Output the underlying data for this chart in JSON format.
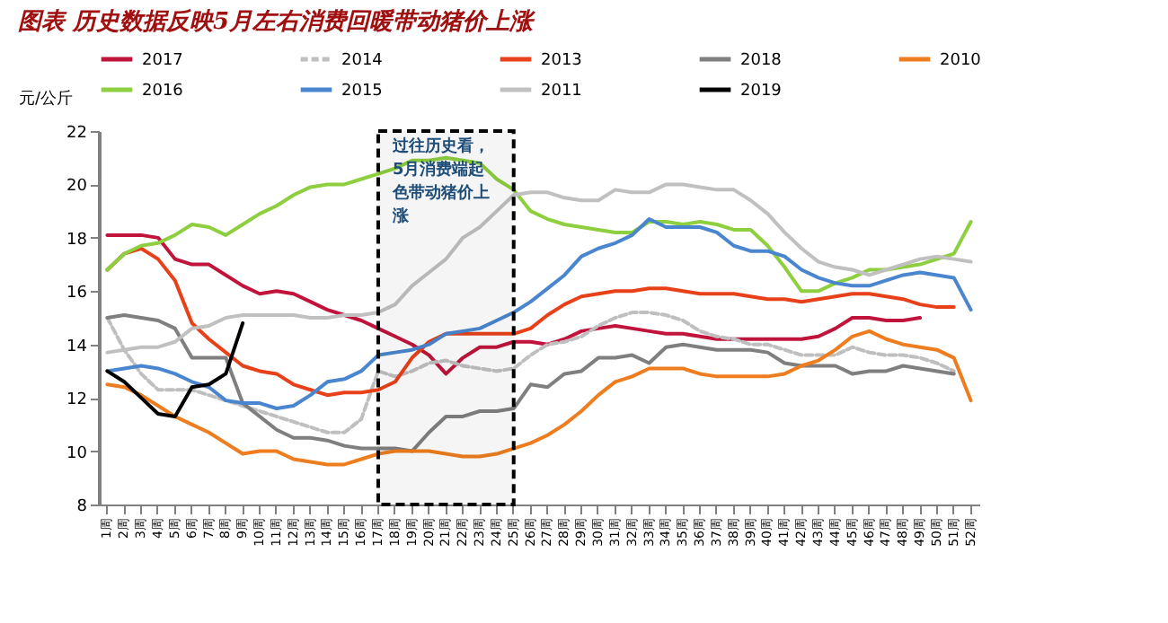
{
  "chart_data": {
    "type": "line",
    "title": "图表    历史数据反映5月左右消费回暖带动猪价上涨",
    "ylabel": "元/公斤",
    "categories": [
      "1周",
      "2周",
      "3周",
      "4周",
      "5周",
      "6周",
      "7周",
      "8周",
      "9周",
      "10周",
      "11周",
      "12周",
      "13周",
      "14周",
      "15周",
      "16周",
      "17周",
      "18周",
      "19周",
      "20周",
      "21周",
      "22周",
      "23周",
      "24周",
      "25周",
      "26周",
      "27周",
      "28周",
      "29周",
      "30周",
      "31周",
      "32周",
      "33周",
      "34周",
      "35周",
      "36周",
      "37周",
      "38周",
      "39周",
      "40周",
      "41周",
      "42周",
      "43周",
      "44周",
      "45周",
      "46周",
      "47周",
      "48周",
      "49周",
      "50周",
      "51周",
      "52周"
    ],
    "ylim": [
      8,
      22
    ],
    "yticks": [
      8,
      10,
      12,
      14,
      16,
      18,
      20,
      22
    ],
    "grid": false,
    "legend": "top",
    "marker": "none",
    "series": [
      {
        "name": "2017",
        "color": "#c0143c",
        "line_style": "solid",
        "values": [
          18.1,
          18.1,
          18.1,
          18.0,
          17.2,
          17.0,
          17.0,
          16.6,
          16.2,
          15.9,
          16.0,
          15.9,
          15.6,
          15.3,
          15.1,
          14.9,
          14.6,
          14.3,
          14.0,
          13.6,
          12.9,
          13.5,
          13.9,
          13.9,
          14.1,
          14.1,
          14.0,
          14.2,
          14.5,
          14.6,
          14.7,
          14.6,
          14.5,
          14.4,
          14.4,
          14.3,
          14.2,
          14.2,
          14.2,
          14.2,
          14.2,
          14.2,
          14.3,
          14.6,
          15.0,
          15.0,
          14.9,
          14.9,
          15.0,
          null,
          null,
          null
        ]
      },
      {
        "name": "2014",
        "color": "#bfbfbf",
        "line_style": "dashed",
        "values": [
          15.0,
          13.8,
          12.9,
          12.3,
          12.3,
          12.3,
          12.1,
          11.9,
          11.7,
          11.5,
          11.3,
          11.1,
          10.9,
          10.7,
          10.7,
          11.2,
          13.0,
          12.8,
          13.0,
          13.3,
          13.4,
          13.2,
          13.1,
          13.0,
          13.1,
          13.6,
          14.0,
          14.1,
          14.3,
          14.7,
          15.0,
          15.2,
          15.2,
          15.1,
          14.9,
          14.5,
          14.3,
          14.2,
          14.0,
          14.0,
          13.8,
          13.6,
          13.6,
          13.6,
          13.9,
          13.7,
          13.6,
          13.6,
          13.5,
          13.3,
          13.0,
          null
        ]
      },
      {
        "name": "2013",
        "color": "#e8411a",
        "line_style": "solid",
        "values": [
          16.8,
          17.4,
          17.6,
          17.2,
          16.4,
          14.8,
          14.2,
          13.7,
          13.2,
          13.0,
          12.9,
          12.5,
          12.3,
          12.1,
          12.2,
          12.2,
          12.3,
          12.6,
          13.5,
          14.1,
          14.4,
          14.4,
          14.4,
          14.4,
          14.4,
          14.6,
          15.1,
          15.5,
          15.8,
          15.9,
          16.0,
          16.0,
          16.1,
          16.1,
          16.0,
          15.9,
          15.9,
          15.9,
          15.8,
          15.7,
          15.7,
          15.6,
          15.7,
          15.8,
          15.9,
          15.9,
          15.8,
          15.7,
          15.5,
          15.4,
          15.4,
          null
        ]
      },
      {
        "name": "2018",
        "color": "#7f7f7f",
        "line_style": "solid",
        "values": [
          15.0,
          15.1,
          15.0,
          14.9,
          14.6,
          13.5,
          13.5,
          13.5,
          11.8,
          11.3,
          10.8,
          10.5,
          10.5,
          10.4,
          10.2,
          10.1,
          10.1,
          10.1,
          10.0,
          10.7,
          11.3,
          11.3,
          11.5,
          11.5,
          11.6,
          12.5,
          12.4,
          12.9,
          13.0,
          13.5,
          13.5,
          13.6,
          13.3,
          13.9,
          14.0,
          13.9,
          13.8,
          13.8,
          13.8,
          13.7,
          13.3,
          13.2,
          13.2,
          13.2,
          12.9,
          13.0,
          13.0,
          13.2,
          13.1,
          13.0,
          12.9,
          null
        ]
      },
      {
        "name": "2010",
        "color": "#ed7d1f",
        "line_style": "solid",
        "values": [
          12.5,
          12.4,
          12.1,
          11.7,
          11.3,
          11.0,
          10.7,
          10.3,
          9.9,
          10.0,
          10.0,
          9.7,
          9.6,
          9.5,
          9.5,
          9.7,
          9.9,
          10.0,
          10.0,
          10.0,
          9.9,
          9.8,
          9.8,
          9.9,
          10.1,
          10.3,
          10.6,
          11.0,
          11.5,
          12.1,
          12.6,
          12.8,
          13.1,
          13.1,
          13.1,
          12.9,
          12.8,
          12.8,
          12.8,
          12.8,
          12.9,
          13.2,
          13.4,
          13.8,
          14.3,
          14.5,
          14.2,
          14.0,
          13.9,
          13.8,
          13.5,
          11.9
        ]
      },
      {
        "name": "2016",
        "color": "#8dcf3f",
        "line_style": "solid",
        "values": [
          16.8,
          17.4,
          17.7,
          17.8,
          18.1,
          18.5,
          18.4,
          18.1,
          18.5,
          18.9,
          19.2,
          19.6,
          19.9,
          20.0,
          20.0,
          20.2,
          20.4,
          20.6,
          20.9,
          20.9,
          21.0,
          20.9,
          20.8,
          20.2,
          19.8,
          19.0,
          18.7,
          18.5,
          18.4,
          18.3,
          18.2,
          18.2,
          18.6,
          18.6,
          18.5,
          18.6,
          18.5,
          18.3,
          18.3,
          17.7,
          16.9,
          16.0,
          16.0,
          16.3,
          16.5,
          16.8,
          16.8,
          16.9,
          17.0,
          17.2,
          17.4,
          18.6
        ]
      },
      {
        "name": "2015",
        "color": "#4a86d0",
        "line_style": "solid",
        "values": [
          13.0,
          13.1,
          13.2,
          13.1,
          12.9,
          12.6,
          12.4,
          11.9,
          11.8,
          11.8,
          11.6,
          11.7,
          12.1,
          12.6,
          12.7,
          13.0,
          13.6,
          13.7,
          13.8,
          14.0,
          14.4,
          14.5,
          14.6,
          14.9,
          15.2,
          15.6,
          16.1,
          16.6,
          17.3,
          17.6,
          17.8,
          18.1,
          18.7,
          18.4,
          18.4,
          18.4,
          18.2,
          17.7,
          17.5,
          17.5,
          17.3,
          16.8,
          16.5,
          16.3,
          16.2,
          16.2,
          16.4,
          16.6,
          16.7,
          16.6,
          16.5,
          15.3
        ]
      },
      {
        "name": "2011",
        "color": "#c0c0c0",
        "line_style": "solid",
        "values": [
          13.7,
          13.8,
          13.9,
          13.9,
          14.1,
          14.6,
          14.7,
          15.0,
          15.1,
          15.1,
          15.1,
          15.1,
          15.0,
          15.0,
          15.1,
          15.1,
          15.2,
          15.5,
          16.2,
          16.7,
          17.2,
          18.0,
          18.4,
          19.0,
          19.6,
          19.7,
          19.7,
          19.5,
          19.4,
          19.4,
          19.8,
          19.7,
          19.7,
          20.0,
          20.0,
          19.9,
          19.8,
          19.8,
          19.4,
          18.9,
          18.2,
          17.6,
          17.1,
          16.9,
          16.8,
          16.6,
          16.8,
          17.0,
          17.2,
          17.3,
          17.2,
          17.1
        ]
      },
      {
        "name": "2019",
        "color": "#000000",
        "line_style": "solid",
        "values": [
          13.0,
          12.6,
          12.0,
          11.4,
          11.3,
          12.4,
          12.5,
          12.9,
          14.8,
          null,
          null,
          null,
          null,
          null,
          null,
          null,
          null,
          null,
          null,
          null,
          null,
          null,
          null,
          null,
          null,
          null,
          null,
          null,
          null,
          null,
          null,
          null,
          null,
          null,
          null,
          null,
          null,
          null,
          null,
          null,
          null,
          null,
          null,
          null,
          null,
          null,
          null,
          null,
          null,
          null,
          null,
          null
        ]
      }
    ],
    "bands": [
      {
        "axis": "x",
        "from": "17周",
        "to": "25周",
        "label": "过往历史看，5月消费端起色带动猪价上涨",
        "color": "#000000"
      }
    ]
  }
}
